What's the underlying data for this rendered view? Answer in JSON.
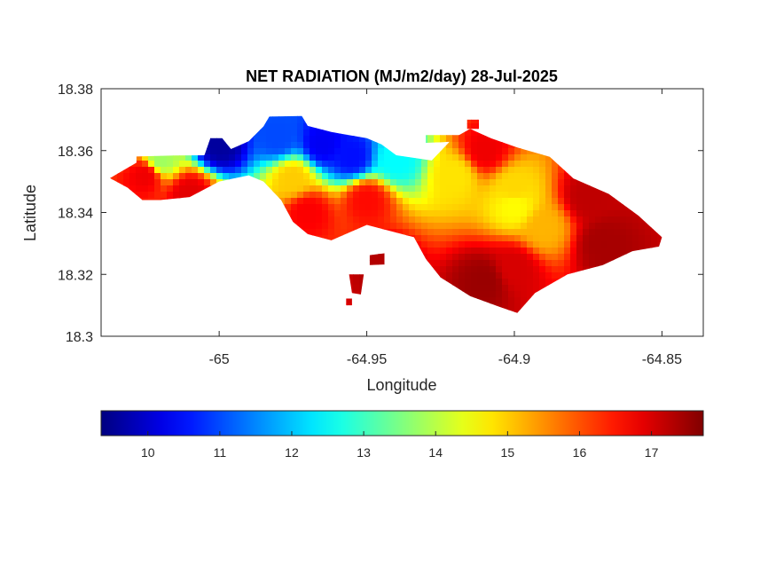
{
  "chart_data": {
    "type": "heatmap",
    "title": "NET RADIATION (MJ/m2/day) 28-Jul-2025",
    "xlabel": "Longitude",
    "ylabel": "Latitude",
    "xlim": [
      -65.04,
      -64.836
    ],
    "ylim": [
      18.3,
      18.38
    ],
    "x_ticks": [
      -65,
      -64.95,
      -64.9,
      -64.85
    ],
    "x_tick_labels": [
      "-65",
      "-64.95",
      "-64.9",
      "-64.85"
    ],
    "y_ticks": [
      18.3,
      18.32,
      18.34,
      18.36,
      18.38
    ],
    "y_tick_labels": [
      "18.3",
      "18.32",
      "18.34",
      "18.36",
      "18.38"
    ],
    "colormap": "jet",
    "color_range": [
      9.35,
      17.72
    ],
    "colorbar": {
      "orientation": "horizontal",
      "location": "below",
      "ticks": [
        10,
        11,
        12,
        13,
        14,
        15,
        16,
        17
      ],
      "tick_labels": [
        "10",
        "11",
        "12",
        "13",
        "14",
        "15",
        "16",
        "17"
      ]
    },
    "grid": false,
    "regions": [
      {
        "lon": -65.025,
        "lat": 18.352,
        "value": 16.8
      },
      {
        "lon": -65.01,
        "lat": 18.346,
        "value": 16.9
      },
      {
        "lon": -65.02,
        "lat": 18.357,
        "value": 13.8
      },
      {
        "lon": -65.0,
        "lat": 18.362,
        "value": 9.6
      },
      {
        "lon": -64.98,
        "lat": 18.364,
        "value": 11.0
      },
      {
        "lon": -64.965,
        "lat": 18.362,
        "value": 10.3
      },
      {
        "lon": -64.955,
        "lat": 18.358,
        "value": 10.5
      },
      {
        "lon": -64.94,
        "lat": 18.357,
        "value": 12.5
      },
      {
        "lon": -64.975,
        "lat": 18.351,
        "value": 15.0
      },
      {
        "lon": -64.97,
        "lat": 18.34,
        "value": 16.7
      },
      {
        "lon": -64.95,
        "lat": 18.344,
        "value": 16.6
      },
      {
        "lon": -64.92,
        "lat": 18.352,
        "value": 14.8
      },
      {
        "lon": -64.9,
        "lat": 18.348,
        "value": 14.9
      },
      {
        "lon": -64.9,
        "lat": 18.342,
        "value": 14.6
      },
      {
        "lon": -64.89,
        "lat": 18.335,
        "value": 15.2
      },
      {
        "lon": -64.91,
        "lat": 18.36,
        "value": 16.8
      },
      {
        "lon": -64.875,
        "lat": 18.345,
        "value": 17.2
      },
      {
        "lon": -64.87,
        "lat": 18.33,
        "value": 17.4
      },
      {
        "lon": -64.9,
        "lat": 18.322,
        "value": 17.0
      },
      {
        "lon": -64.91,
        "lat": 18.318,
        "value": 17.5
      },
      {
        "lon": -64.945,
        "lat": 18.322,
        "value": 17.3
      }
    ]
  }
}
